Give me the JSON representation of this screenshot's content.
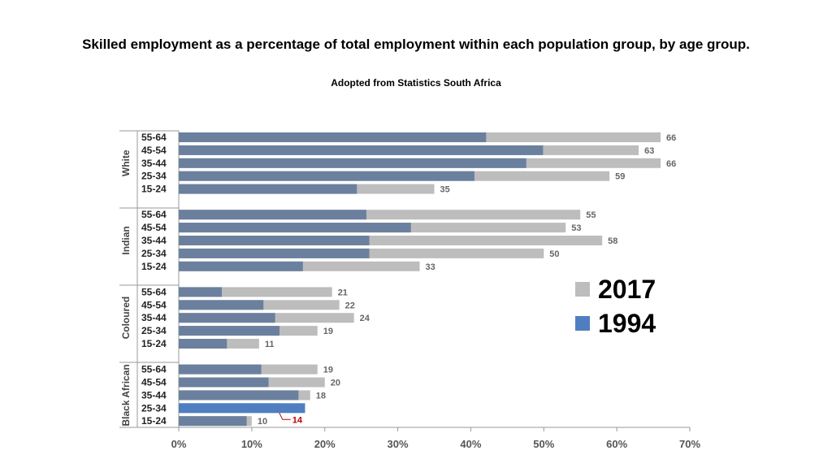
{
  "title": "Skilled employment as a percentage of total employment within each population group, by age group.",
  "subtitle": "Adopted from Statistics South Africa",
  "colors": {
    "y2017": "#bdbdbd",
    "y1994": "#6b809e",
    "highlight": "#4f7fc0",
    "callout": "#c00000",
    "value_label": "#666666",
    "axis": "#999999"
  },
  "legend": [
    {
      "label": "2017",
      "color": "#bdbdbd"
    },
    {
      "label": "1994",
      "color": "#4f7fc0"
    }
  ],
  "chart_data": {
    "type": "bar",
    "orientation": "horizontal",
    "xlim": [
      0,
      70
    ],
    "x_ticks": [
      "0%",
      "10%",
      "20%",
      "30%",
      "40%",
      "50%",
      "60%",
      "70%"
    ],
    "groups": [
      {
        "name": "White",
        "rows": [
          {
            "age": "55-64",
            "v2017": 66,
            "v1994": 42.1
          },
          {
            "age": "45-54",
            "v2017": 63,
            "v1994": 49.9
          },
          {
            "age": "35-44",
            "v2017": 66,
            "v1994": 47.6
          },
          {
            "age": "25-34",
            "v2017": 59,
            "v1994": 40.5
          },
          {
            "age": "15-24",
            "v2017": 35,
            "v1994": 24.4
          }
        ]
      },
      {
        "name": "Indian",
        "rows": [
          {
            "age": "55-64",
            "v2017": 55,
            "v1994": 25.7
          },
          {
            "age": "45-54",
            "v2017": 53,
            "v1994": 31.8
          },
          {
            "age": "35-44",
            "v2017": 58,
            "v1994": 26.1
          },
          {
            "age": "25-34",
            "v2017": 50,
            "v1994": 26.1
          },
          {
            "age": "15-24",
            "v2017": 33,
            "v1994": 17.0
          }
        ]
      },
      {
        "name": "Coloured",
        "rows": [
          {
            "age": "55-64",
            "v2017": 21,
            "v1994": 5.9
          },
          {
            "age": "45-54",
            "v2017": 22,
            "v1994": 11.6
          },
          {
            "age": "35-44",
            "v2017": 24,
            "v1994": 13.2
          },
          {
            "age": "25-34",
            "v2017": 19,
            "v1994": 13.8
          },
          {
            "age": "15-24",
            "v2017": 11,
            "v1994": 6.6
          }
        ]
      },
      {
        "name": "Black African",
        "rows": [
          {
            "age": "55-64",
            "v2017": 19,
            "v1994": 11.3
          },
          {
            "age": "45-54",
            "v2017": 20,
            "v1994": 12.3
          },
          {
            "age": "35-44",
            "v2017": 18,
            "v1994": 16.4
          },
          {
            "age": "25-34",
            "v2017": 14,
            "v1994": 17.3,
            "highlight": true
          },
          {
            "age": "15-24",
            "v2017": 10,
            "v1994": 9.3
          }
        ]
      }
    ]
  }
}
